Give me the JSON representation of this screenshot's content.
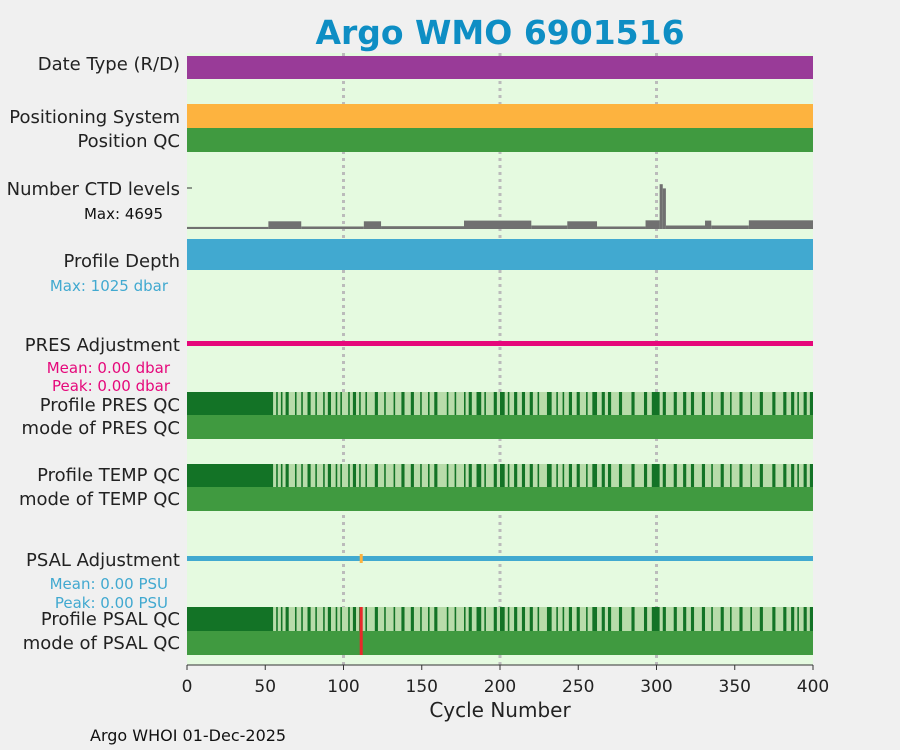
{
  "chart_data": {
    "type": "bar",
    "title": "Argo WMO 6901516",
    "xlabel": "Cycle Number",
    "xlim": [
      0,
      400
    ],
    "xticks": [
      "0",
      "50",
      "100",
      "150",
      "200",
      "250",
      "300",
      "350",
      "400"
    ],
    "grid_x": [
      100,
      200,
      300
    ],
    "footer": "Argo WHOI 01-Dec-2025",
    "rows": {
      "date_type": "Date Type (R/D)",
      "positioning": "Positioning System",
      "position_qc": "Position QC",
      "ctd_levels": "Number CTD levels",
      "ctd_max": "Max: 4695",
      "profile_depth": "Profile Depth",
      "depth_max": "Max: 1025 dbar",
      "pres_adj": "PRES Adjustment",
      "pres_mean": "Mean: 0.00 dbar",
      "pres_peak": "Peak: 0.00 dbar",
      "profile_pres_qc": "Profile PRES QC",
      "mode_pres_qc": "mode of PRES QC",
      "profile_temp_qc": "Profile TEMP QC",
      "mode_temp_qc": "mode of TEMP QC",
      "psal_adj": "PSAL Adjustment",
      "psal_mean": "Mean: 0.00 PSU",
      "psal_peak": "Peak: 0.00 PSU",
      "profile_psal_qc": "Profile PSAL QC",
      "mode_psal_qc": "mode of PSAL QC"
    },
    "ctd_segments": [
      {
        "from": 0,
        "to": 52,
        "value": 0.15
      },
      {
        "from": 52,
        "to": 73,
        "value": 0.55
      },
      {
        "from": 73,
        "to": 113,
        "value": 0.18
      },
      {
        "from": 113,
        "to": 124,
        "value": 0.55
      },
      {
        "from": 124,
        "to": 177,
        "value": 0.2
      },
      {
        "from": 177,
        "to": 220,
        "value": 0.6
      },
      {
        "from": 220,
        "to": 243,
        "value": 0.25
      },
      {
        "from": 243,
        "to": 262,
        "value": 0.55
      },
      {
        "from": 262,
        "to": 293,
        "value": 0.18
      },
      {
        "from": 293,
        "to": 302,
        "value": 0.62
      },
      {
        "from": 302,
        "to": 304,
        "value": 3.2
      },
      {
        "from": 304,
        "to": 306,
        "value": 2.9
      },
      {
        "from": 306,
        "to": 331,
        "value": 0.25
      },
      {
        "from": 331,
        "to": 335,
        "value": 0.6
      },
      {
        "from": 335,
        "to": 359,
        "value": 0.25
      },
      {
        "from": 359,
        "to": 400,
        "value": 0.62
      }
    ],
    "psal_flag_cycle": 111,
    "qc_dark_ranges": [
      [
        0,
        55
      ],
      [
        57,
        58
      ],
      [
        60,
        61
      ],
      [
        63,
        65
      ],
      [
        69,
        70
      ],
      [
        73,
        74
      ],
      [
        77,
        79
      ],
      [
        82,
        83
      ],
      [
        87,
        88
      ],
      [
        90,
        92
      ],
      [
        95,
        96
      ],
      [
        98,
        99
      ],
      [
        103,
        104
      ],
      [
        106,
        108
      ],
      [
        110,
        111
      ],
      [
        114,
        115
      ],
      [
        120,
        122
      ],
      [
        126,
        127
      ],
      [
        132,
        133
      ],
      [
        137,
        139
      ],
      [
        143,
        145
      ],
      [
        149,
        150
      ],
      [
        154,
        155
      ],
      [
        158,
        160
      ],
      [
        166,
        167
      ],
      [
        171,
        172
      ],
      [
        177,
        178
      ],
      [
        180,
        182
      ],
      [
        185,
        188
      ],
      [
        190,
        191
      ],
      [
        196,
        198
      ],
      [
        200,
        203
      ],
      [
        205,
        206
      ],
      [
        209,
        211
      ],
      [
        214,
        216
      ],
      [
        219,
        221
      ],
      [
        224,
        225
      ],
      [
        230,
        233
      ],
      [
        236,
        237
      ],
      [
        240,
        241
      ],
      [
        244,
        246
      ],
      [
        249,
        251
      ],
      [
        255,
        256
      ],
      [
        259,
        262
      ],
      [
        265,
        267
      ],
      [
        269,
        271
      ],
      [
        276,
        278
      ],
      [
        284,
        286
      ],
      [
        292,
        294
      ],
      [
        297,
        302
      ],
      [
        304,
        306
      ],
      [
        311,
        313
      ],
      [
        317,
        319
      ],
      [
        322,
        324
      ],
      [
        329,
        331
      ],
      [
        335,
        336
      ],
      [
        341,
        343
      ],
      [
        347,
        348
      ],
      [
        353,
        355
      ],
      [
        360,
        361
      ],
      [
        366,
        368
      ],
      [
        374,
        376
      ],
      [
        381,
        383
      ],
      [
        386,
        388
      ],
      [
        390,
        391
      ],
      [
        394,
        396
      ],
      [
        398,
        400
      ]
    ],
    "colors": {
      "title": "#0e8ec4",
      "panel": "#e5fae0",
      "date_type": "#993b98",
      "positioning": "#fdb33f",
      "qc_green": "#409a40",
      "qc_dark": "#137326",
      "qc_light": "#b8dcaa",
      "ctd": "#707070",
      "depth": "#41a9d0",
      "pres": "#e5087b",
      "psal": "#41a9d0",
      "flag_red": "#e8282a"
    }
  }
}
